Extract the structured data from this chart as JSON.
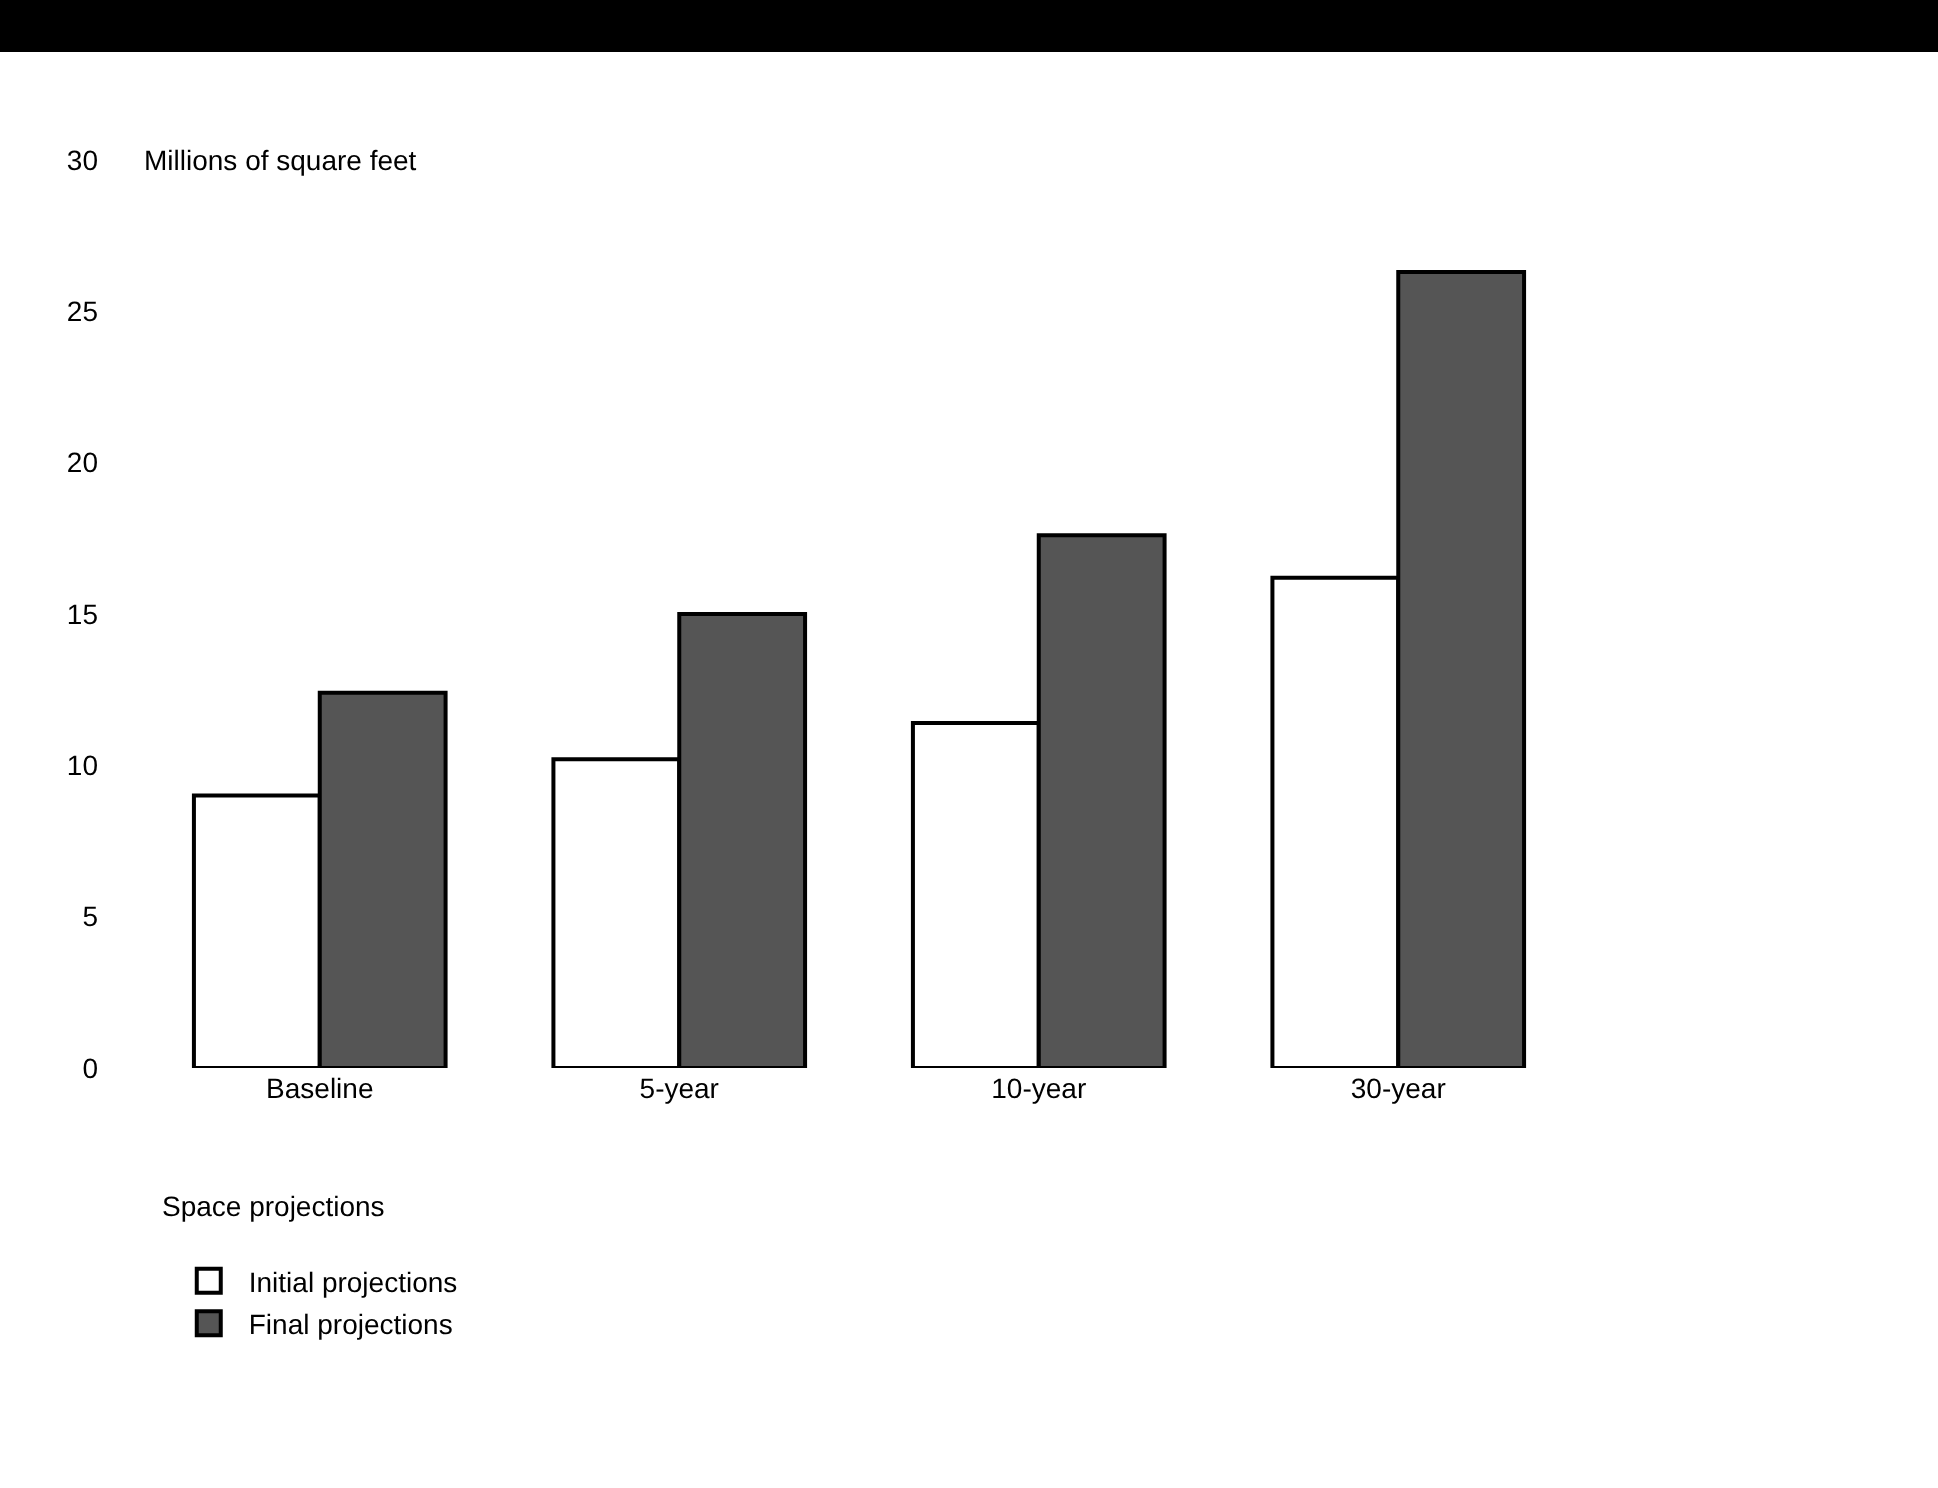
{
  "chart_data": {
    "type": "bar",
    "ylabel": "Millions of square feet",
    "xlabel": "Space projections",
    "categories": [
      "Baseline",
      "5-year",
      "10-year",
      "30-year"
    ],
    "series": [
      {
        "name": "Initial projections",
        "color": "#ffffff",
        "values": [
          9.0,
          10.2,
          11.4,
          16.2
        ]
      },
      {
        "name": "Final projections",
        "color": "#555555",
        "values": [
          12.4,
          15.0,
          17.6,
          26.3
        ]
      }
    ],
    "ylim": [
      0,
      30
    ],
    "yticks": [
      0,
      5,
      10,
      15,
      20,
      25,
      30
    ],
    "grid": false,
    "legend": "bottom left"
  }
}
